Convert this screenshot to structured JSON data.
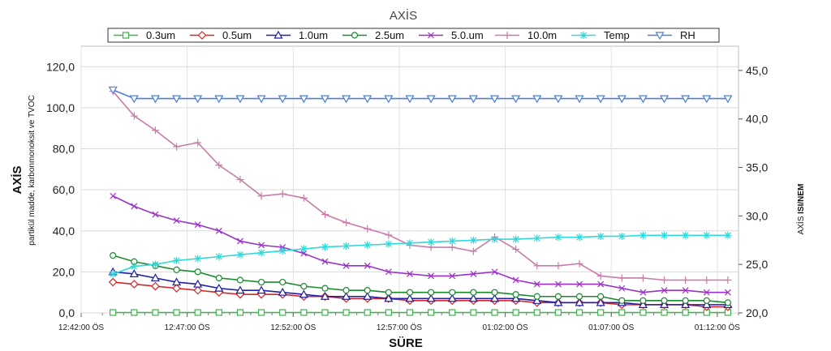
{
  "chart_data": {
    "type": "line",
    "title": "AXİS",
    "xlabel": "SÜRE",
    "ylabel": "AXİS",
    "ylabel_sub": "partikül madde, karbonmonoksit ve TVOC",
    "y2label_prefix": "AXİS",
    "y2label_bold": "ISI/NEM",
    "ylim": [
      0,
      130
    ],
    "y2lim": [
      20,
      47.5
    ],
    "y_ticks": [
      "0,0",
      "20,0",
      "40,0",
      "60,0",
      "80,0",
      "100,0",
      "120,0"
    ],
    "y_tick_values": [
      0,
      20,
      40,
      60,
      80,
      100,
      120
    ],
    "y2_ticks": [
      "20,0",
      "25,0",
      "30,0",
      "35,0",
      "40,0",
      "45,0"
    ],
    "y2_tick_values": [
      20,
      25,
      30,
      35,
      40,
      45
    ],
    "xlim": [
      0,
      31
    ],
    "x_ticks": [
      "12:42:00 ÖS",
      "12:47:00 ÖS",
      "12:52:00 ÖS",
      "12:57:00 ÖS",
      "01:02:00 ÖS",
      "01:07:00 ÖS",
      "01:12:00 ÖS"
    ],
    "x_tick_values": [
      0,
      5,
      10,
      15,
      20,
      25,
      30
    ],
    "x": [
      1.5,
      2.5,
      3.5,
      4.5,
      5.5,
      6.5,
      7.5,
      8.5,
      9.5,
      10.5,
      11.5,
      12.5,
      13.5,
      14.5,
      15.5,
      16.5,
      17.5,
      18.5,
      19.5,
      20.5,
      21.5,
      22.5,
      23.5,
      24.5,
      25.5,
      26.5,
      27.5,
      28.5,
      29.5,
      30.5
    ],
    "series": [
      {
        "name": "0.3um",
        "color": "#3cb44b",
        "marker": "square",
        "axis": "left",
        "values": [
          0.2,
          0.2,
          0.2,
          0.2,
          0.2,
          0.2,
          0.2,
          0.2,
          0.2,
          0.2,
          0.2,
          0.2,
          0.2,
          0.2,
          0.2,
          0.2,
          0.2,
          0.2,
          0.2,
          0.2,
          0.2,
          0.2,
          0.2,
          0.2,
          0.2,
          0.2,
          0.2,
          0.2,
          0.2,
          0.2
        ]
      },
      {
        "name": "0.5um",
        "color": "#d62728",
        "marker": "diamond",
        "axis": "left",
        "values": [
          15,
          14,
          13,
          12,
          11,
          10,
          9,
          9,
          9,
          8,
          8,
          7,
          7,
          7,
          6,
          6,
          6,
          6,
          6,
          6,
          5,
          5,
          5,
          5,
          4,
          4,
          4,
          4,
          3,
          3
        ]
      },
      {
        "name": "1.0um",
        "color": "#1f1fa8",
        "marker": "triangle-up",
        "axis": "left",
        "values": [
          20,
          19,
          17,
          15,
          14,
          12,
          11,
          11,
          10,
          9,
          8,
          8,
          8,
          7,
          7,
          7,
          7,
          7,
          7,
          7,
          6,
          5,
          5,
          5,
          5,
          4,
          4,
          4,
          4,
          4
        ]
      },
      {
        "name": "2.5um",
        "color": "#1a8a2e",
        "marker": "circle",
        "axis": "left",
        "values": [
          28,
          25,
          23,
          21,
          20,
          17,
          16,
          15,
          15,
          13,
          12,
          11,
          11,
          10,
          10,
          10,
          10,
          10,
          10,
          9,
          8,
          8,
          8,
          8,
          6,
          6,
          6,
          6,
          6,
          5
        ]
      },
      {
        "name": "5.0.um",
        "color": "#9b30c8",
        "marker": "x",
        "axis": "left",
        "values": [
          57,
          52,
          48,
          45,
          43,
          40,
          35,
          33,
          32,
          29,
          25,
          23,
          23,
          20,
          19,
          18,
          18,
          19,
          20,
          16,
          14,
          14,
          14,
          14,
          12,
          10,
          11,
          11,
          10,
          10
        ]
      },
      {
        "name": "10.0m",
        "color": "#c97ba8",
        "marker": "plus",
        "axis": "left",
        "values": [
          108,
          96,
          89,
          81,
          83,
          72,
          65,
          57,
          58,
          56,
          48,
          44,
          41,
          38,
          33,
          32,
          32,
          30,
          37,
          31,
          23,
          23,
          24,
          18,
          17,
          17,
          16,
          16,
          16,
          16
        ]
      },
      {
        "name": "Temp",
        "color": "#2fd9d9",
        "marker": "asterisk",
        "axis": "right",
        "values": [
          24.0,
          24.8,
          25.0,
          25.4,
          25.6,
          25.8,
          26.0,
          26.2,
          26.4,
          26.6,
          26.8,
          26.9,
          27.0,
          27.1,
          27.2,
          27.3,
          27.4,
          27.5,
          27.6,
          27.6,
          27.7,
          27.8,
          27.8,
          27.9,
          27.9,
          28.0,
          28.0,
          28.0,
          28.0,
          28.0
        ]
      },
      {
        "name": "RH",
        "color": "#4f7fd6",
        "marker": "triangle-down",
        "axis": "right",
        "values": [
          43.0,
          42.1,
          42.1,
          42.1,
          42.1,
          42.1,
          42.1,
          42.1,
          42.1,
          42.1,
          42.1,
          42.1,
          42.1,
          42.1,
          42.1,
          42.1,
          42.1,
          42.1,
          42.1,
          42.1,
          42.1,
          42.1,
          42.1,
          42.1,
          42.1,
          42.1,
          42.1,
          42.1,
          42.1,
          42.1
        ]
      }
    ],
    "grid": true,
    "legend_position": "top"
  }
}
